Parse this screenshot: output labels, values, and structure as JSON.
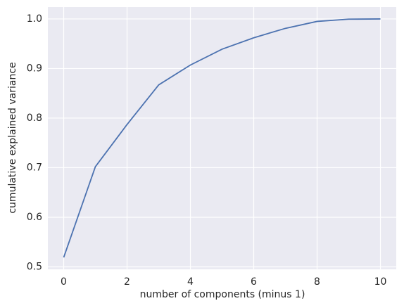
{
  "chart_data": {
    "type": "line",
    "x_label": "number of components (minus 1)",
    "y_label": "cumulative explained variance",
    "x": [
      0,
      1,
      2,
      3,
      4,
      5,
      6,
      7,
      8,
      9,
      10
    ],
    "series": [
      {
        "color": "#4c72b0",
        "values": [
          0.519,
          0.702,
          0.787,
          0.867,
          0.907,
          0.939,
          0.962,
          0.981,
          0.995,
          0.9995,
          1.0
        ]
      }
    ],
    "xlim": [
      -0.5,
      10.5
    ],
    "ylim": [
      0.495,
      1.024
    ],
    "xticks": [
      0,
      2,
      4,
      6,
      8,
      10
    ],
    "yticks": [
      0.5,
      0.6,
      0.7,
      0.8,
      0.9,
      {
        "value": 1,
        "label": "1.0"
      }
    ],
    "grid": true,
    "background": "#eaeaf2"
  }
}
